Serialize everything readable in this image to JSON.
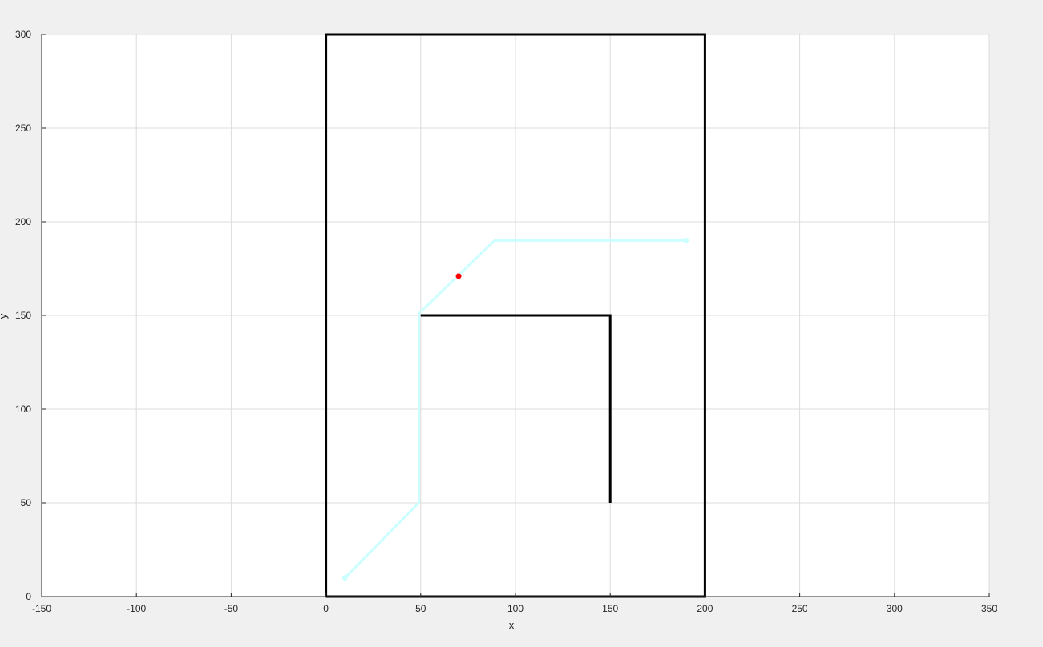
{
  "chart_data": {
    "type": "line",
    "title": "",
    "xlabel": "x",
    "ylabel": "y",
    "xlim": [
      -150,
      350
    ],
    "ylim": [
      0,
      300
    ],
    "x_ticks": [
      -150,
      -100,
      -50,
      0,
      50,
      100,
      150,
      200,
      250,
      300,
      350
    ],
    "y_ticks": [
      0,
      50,
      100,
      150,
      200,
      250,
      300
    ],
    "grid": true,
    "colors": {
      "figure_bg": "#f0f0f0",
      "axes_bg": "#ffffff",
      "grid": "#dcdcdc",
      "walls": "#000000",
      "path": "#ccffff",
      "current_point": "#ff0000",
      "tick_text": "#262626"
    },
    "series": [
      {
        "role": "outer-boundary",
        "color": "#000000",
        "points": [
          [
            0,
            0
          ],
          [
            200,
            0
          ],
          [
            200,
            300
          ],
          [
            0,
            300
          ],
          [
            0,
            0
          ]
        ]
      },
      {
        "role": "inner-wall",
        "color": "#000000",
        "points": [
          [
            50,
            150
          ],
          [
            150,
            150
          ],
          [
            150,
            50
          ]
        ]
      },
      {
        "role": "path",
        "color": "#ccffff",
        "markers": "endpoints",
        "points": [
          [
            10,
            10
          ],
          [
            49,
            50
          ],
          [
            49,
            151
          ],
          [
            89,
            190
          ],
          [
            190,
            190
          ]
        ]
      }
    ],
    "markers": [
      {
        "role": "current-position",
        "color": "#ff0000",
        "x": 70,
        "y": 171
      }
    ]
  }
}
